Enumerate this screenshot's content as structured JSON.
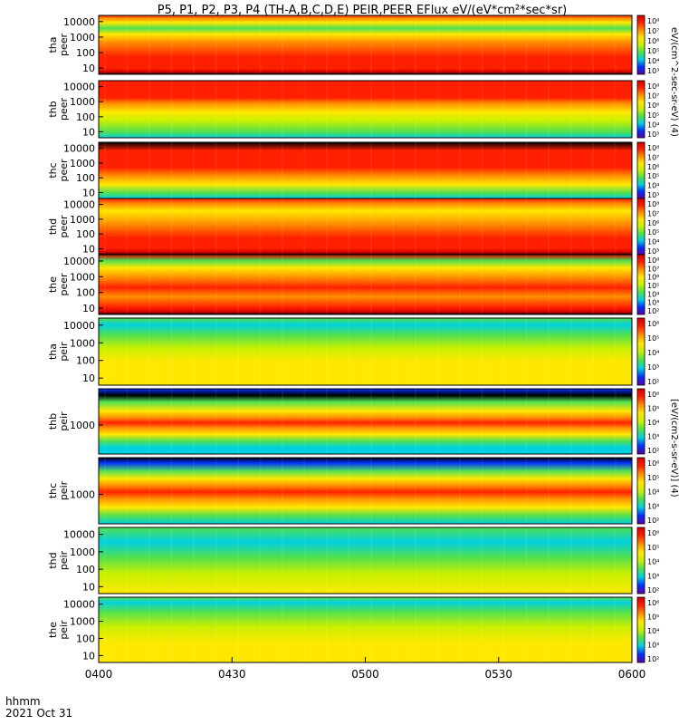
{
  "title": "P5, P1, P2, P3, P4 (TH-A,B,C,D,E) PEIR,PEER EFlux eV/(eV*cm²*sec*sr)",
  "footer": {
    "time_label": "hhmm",
    "date_label": "2021 Oct 31"
  },
  "colorbar_unit_top": "eV/(cm^2-sec-sr-eV) (4)",
  "colorbar_unit_bottom": "[eV/(cm2-s-sr-eV)] (4)",
  "colors": {
    "deep_red": "#d40000",
    "red": "#ff2000",
    "orange": "#ff9000",
    "yellow": "#ffe800",
    "yellow_green": "#c8f000",
    "green": "#50e050",
    "cyan": "#00d0e0",
    "blue": "#0030ff",
    "purple": "#6000a0",
    "black": "#000000"
  },
  "chart_data": {
    "type": "heatmap",
    "x_axis": {
      "label": "hhmm",
      "range": [
        "0400",
        "0600"
      ],
      "ticks": [
        "0400",
        "0430",
        "0500",
        "0530",
        "0600"
      ]
    },
    "panels": [
      {
        "probe": "tha",
        "species": "peer",
        "label": "tha\npeer",
        "yticks": [
          "10",
          "100",
          "1000",
          "10000"
        ],
        "cb_ticks": [
          "10⁸",
          "10⁷",
          "10⁶",
          "10⁵",
          "10⁴",
          "10³"
        ]
      },
      {
        "probe": "thb",
        "species": "peer",
        "label": "thb\npeer",
        "yticks": [
          "10",
          "100",
          "1000",
          "10000"
        ],
        "cb_ticks": [
          "10⁸",
          "10⁷",
          "10⁶",
          "10⁵",
          "10⁴",
          "10³"
        ]
      },
      {
        "probe": "thc",
        "species": "peer",
        "label": "thc\npeer",
        "yticks": [
          "10",
          "100",
          "1000",
          "10000"
        ],
        "cb_ticks": [
          "10⁸",
          "10⁷",
          "10⁶",
          "10⁵",
          "10⁴",
          "10³"
        ]
      },
      {
        "probe": "thd",
        "species": "peer",
        "label": "thd\npeer",
        "yticks": [
          "10",
          "100",
          "1000",
          "10000"
        ],
        "cb_ticks": [
          "10⁸",
          "10⁷",
          "10⁶",
          "10⁵",
          "10⁴",
          "10³"
        ]
      },
      {
        "probe": "the",
        "species": "peer",
        "label": "the\npeer",
        "yticks": [
          "10",
          "100",
          "1000",
          "10000"
        ],
        "cb_ticks": [
          "10⁸",
          "10⁷",
          "10⁶",
          "10⁵",
          "10⁴",
          "10³",
          "10²"
        ]
      },
      {
        "probe": "tha",
        "species": "peir",
        "label": "tha\npeir",
        "yticks": [
          "10",
          "100",
          "1000",
          "10000"
        ],
        "cb_ticks": [
          "10⁶",
          "10⁵",
          "10⁴",
          "10³",
          "10²"
        ]
      },
      {
        "probe": "thb",
        "species": "peir",
        "label": "thb\npeir",
        "yticks": [
          "1000"
        ],
        "cb_ticks": [
          "10⁶",
          "10⁵",
          "10⁴",
          "10³",
          "10²"
        ]
      },
      {
        "probe": "thc",
        "species": "peir",
        "label": "thc\npeir",
        "yticks": [
          "1000"
        ],
        "cb_ticks": [
          "10⁶",
          "10⁵",
          "10⁴",
          "10³",
          "10²"
        ]
      },
      {
        "probe": "thd",
        "species": "peir",
        "label": "thd\npeir",
        "yticks": [
          "10",
          "100",
          "1000",
          "10000"
        ],
        "cb_ticks": [
          "10⁶",
          "10⁵",
          "10⁴",
          "10³",
          "10²"
        ]
      },
      {
        "probe": "the",
        "species": "peir",
        "label": "the\npeir",
        "yticks": [
          "10",
          "100",
          "1000",
          "10000"
        ],
        "cb_ticks": [
          "10⁶",
          "10⁵",
          "10⁴",
          "10³",
          "10²"
        ]
      }
    ],
    "colorbar": {
      "colors": [
        "#6000a0",
        "#0030ff",
        "#00d0e0",
        "#50e050",
        "#c8f000",
        "#ffe800",
        "#ff9000",
        "#ff2000",
        "#d40000"
      ]
    }
  }
}
